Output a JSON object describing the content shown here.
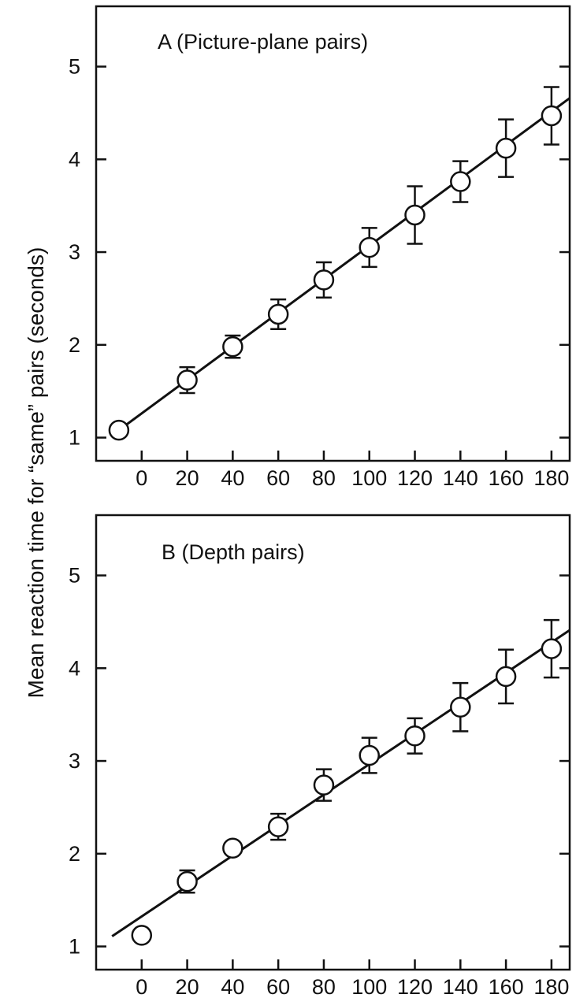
{
  "chart_data": {
    "type": "scatter",
    "ylabel": "Mean reaction time for “same” pairs (seconds)",
    "panels": [
      {
        "title": "A (Picture-plane pairs)",
        "x_ticks": [
          0,
          20,
          40,
          60,
          80,
          100,
          120,
          140,
          160,
          180
        ],
        "y_ticks": [
          1,
          2,
          3,
          4,
          5
        ],
        "xlim": [
          -20,
          188
        ],
        "ylim": [
          0.75,
          5.65
        ],
        "points": [
          {
            "x": -10,
            "y": 1.08,
            "err": null
          },
          {
            "x": 20,
            "y": 1.62,
            "err": 0.14
          },
          {
            "x": 40,
            "y": 1.98,
            "err": 0.12
          },
          {
            "x": 60,
            "y": 2.33,
            "err": 0.16
          },
          {
            "x": 80,
            "y": 2.7,
            "err": 0.19
          },
          {
            "x": 100,
            "y": 3.05,
            "err": 0.21
          },
          {
            "x": 120,
            "y": 3.4,
            "err": 0.31
          },
          {
            "x": 140,
            "y": 3.76,
            "err": 0.22
          },
          {
            "x": 160,
            "y": 4.12,
            "err": 0.31
          },
          {
            "x": 180,
            "y": 4.47,
            "err": 0.31
          }
        ],
        "fit": {
          "x": [
            -10,
            188
          ],
          "y": [
            1.08,
            4.66
          ]
        }
      },
      {
        "title": "B (Depth pairs)",
        "x_ticks": [
          0,
          20,
          40,
          60,
          80,
          100,
          120,
          140,
          160,
          180
        ],
        "y_ticks": [
          1,
          2,
          3,
          4,
          5
        ],
        "xlim": [
          -20,
          188
        ],
        "ylim": [
          0.75,
          5.65
        ],
        "points": [
          {
            "x": 0,
            "y": 1.12,
            "err": null
          },
          {
            "x": 20,
            "y": 1.7,
            "err": 0.12
          },
          {
            "x": 40,
            "y": 2.06,
            "err": null
          },
          {
            "x": 60,
            "y": 2.29,
            "err": 0.14
          },
          {
            "x": 80,
            "y": 2.74,
            "err": 0.17
          },
          {
            "x": 100,
            "y": 3.06,
            "err": 0.19
          },
          {
            "x": 120,
            "y": 3.27,
            "err": 0.19
          },
          {
            "x": 140,
            "y": 3.58,
            "err": 0.26
          },
          {
            "x": 160,
            "y": 3.91,
            "err": 0.29
          },
          {
            "x": 180,
            "y": 4.21,
            "err": 0.31
          }
        ],
        "fit": {
          "x": [
            -13,
            188
          ],
          "y": [
            1.11,
            4.41
          ]
        }
      }
    ]
  }
}
